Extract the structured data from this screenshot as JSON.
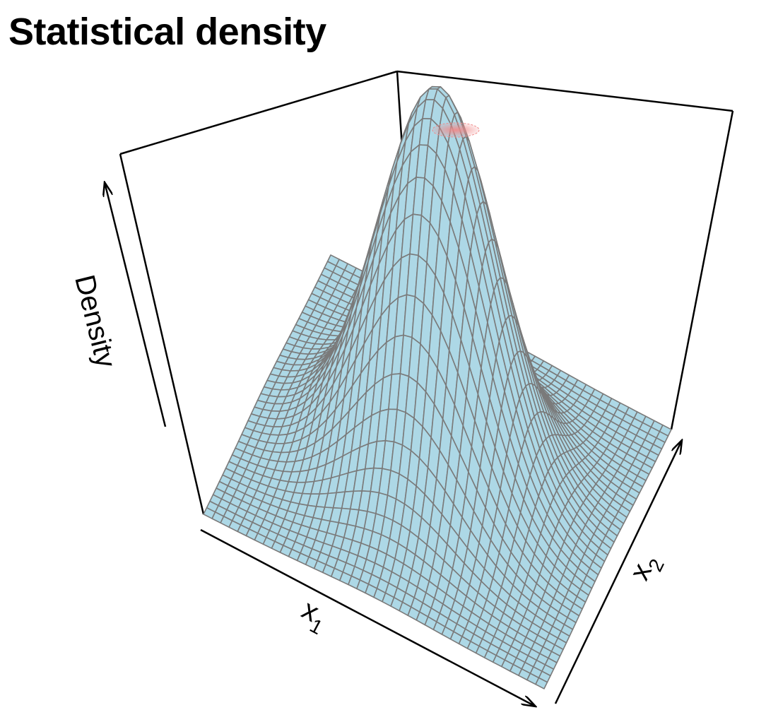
{
  "chart_data": {
    "type": "surface",
    "title": "Statistical density",
    "xlabel": "x",
    "xlabel_sub": "1",
    "ylabel": "x",
    "ylabel_sub": "2",
    "zlabel": "Density",
    "surface": {
      "function": "bivariate-normal",
      "mean": [
        0,
        0
      ],
      "sd": [
        1,
        1
      ],
      "correlation": 0,
      "x_range": [
        -3,
        3
      ],
      "y_range": [
        -3,
        3
      ],
      "grid_lines": 40
    },
    "colors": {
      "surface_fill": "#add8e6",
      "mesh_line": "#7a7a7a",
      "peak_highlight": "#f08a8a",
      "box": "#000000"
    }
  }
}
